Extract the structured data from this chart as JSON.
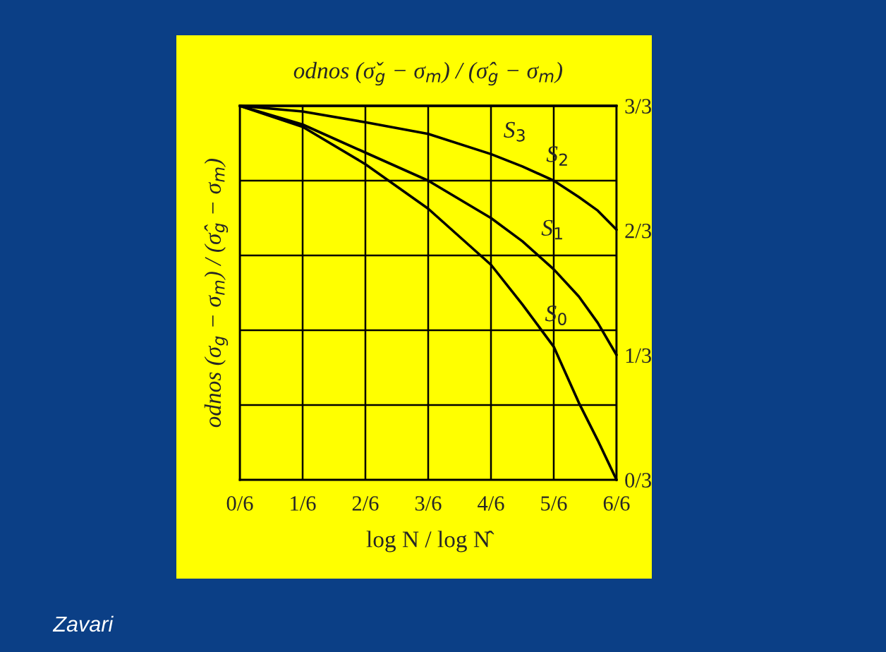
{
  "chart_data": {
    "type": "line",
    "title": "odnos (σ̌$_{g}$ − σ$_{m}$) / (σ̂$_{g}$ − σ$_{m}$)",
    "xlabel": "log N / log N̂",
    "ylabel": "odnos (σ$_{g}$ − σ$_{m}$) / (σ̂$_{g}$ − σ$_{m}$)",
    "x": [
      0,
      0.1667,
      0.3333,
      0.5,
      0.6667,
      0.75,
      0.8333,
      0.9,
      0.95,
      1
    ],
    "series": [
      {
        "name": "S$_{3}$",
        "color": "#000000",
        "values": [
          1,
          1,
          1,
          1,
          1,
          1,
          1,
          1,
          1,
          1
        ]
      },
      {
        "name": "S$_{2}$",
        "color": "#000000",
        "values": [
          1,
          0.985,
          0.956,
          0.925,
          0.871,
          0.838,
          0.8,
          0.756,
          0.72,
          0.669
        ]
      },
      {
        "name": "S$_{1}$",
        "color": "#000000",
        "values": [
          1,
          0.95,
          0.875,
          0.8,
          0.7,
          0.638,
          0.563,
          0.49,
          0.42,
          0.334
        ]
      },
      {
        "name": "S$_{0}$",
        "color": "#000000",
        "values": [
          1,
          0.944,
          0.844,
          0.725,
          0.575,
          0.469,
          0.356,
          0.206,
          0.106,
          0
        ]
      }
    ],
    "xlim": [
      0,
      1
    ],
    "xticks": [
      {
        "value": 0,
        "label": "0/6"
      },
      {
        "value": 0.1667,
        "label": "1/6"
      },
      {
        "value": 0.3333,
        "label": "2/6"
      },
      {
        "value": 0.5,
        "label": "3/6"
      },
      {
        "value": 0.6667,
        "label": "4/6"
      },
      {
        "value": 0.8333,
        "label": "5/6"
      },
      {
        "value": 1,
        "label": "6/6"
      }
    ],
    "ylim": [
      0,
      1
    ],
    "yticks": [
      {
        "value": 0,
        "label": "0/3"
      },
      {
        "value": 0.3333,
        "label": "1/3"
      },
      {
        "value": 0.6667,
        "label": "2/3"
      },
      {
        "value": 1,
        "label": "3/3"
      }
    ],
    "ref_lines": [
      {
        "axis": "y",
        "value": 0.2,
        "color": "#000000"
      },
      {
        "axis": "y",
        "value": 0.4,
        "color": "#000000"
      },
      {
        "axis": "y",
        "value": 0.6,
        "color": "#000000"
      },
      {
        "axis": "y",
        "value": 0.8,
        "color": "#000000"
      }
    ],
    "grid": "x",
    "legend": false,
    "marker": "none",
    "line_style": "solid",
    "annotations": [
      "Zavari"
    ]
  }
}
